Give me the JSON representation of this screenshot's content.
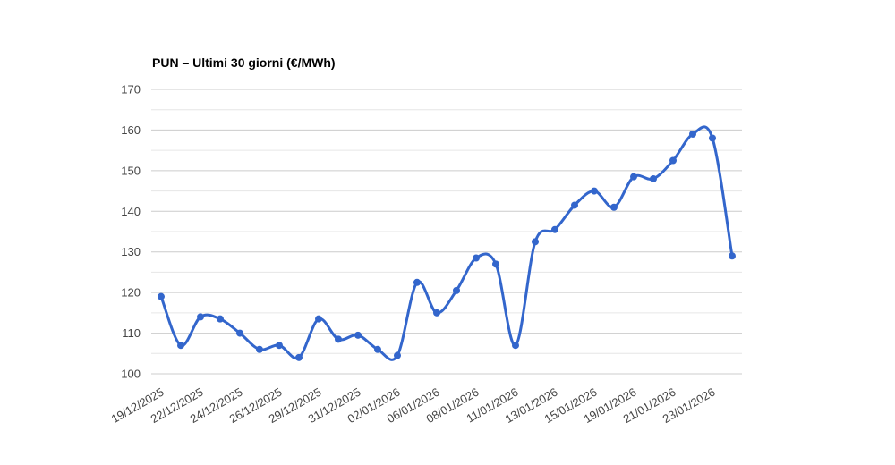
{
  "page": {
    "background_color": "#ffffff"
  },
  "chart_data": {
    "type": "line",
    "title": "PUN – Ultimi 30 giorni (€/MWh)",
    "xlabel": "",
    "ylabel": "",
    "legend": "none",
    "curve": "smooth",
    "ylim": [
      100,
      170
    ],
    "y_tick_step": 10,
    "y_minor_gridline_step": 5,
    "y_tick_labels": [
      "100",
      "110",
      "120",
      "130",
      "140",
      "150",
      "160",
      "170"
    ],
    "x_tick_labels": [
      "19/12/2025",
      "22/12/2025",
      "24/12/2025",
      "26/12/2025",
      "29/12/2025",
      "31/12/2025",
      "02/01/2026",
      "06/01/2026",
      "08/01/2026",
      "11/01/2026",
      "13/01/2026",
      "15/01/2026",
      "19/01/2026",
      "21/01/2026",
      "23/01/2026"
    ],
    "x_tick_every_n_points": 2,
    "values": [
      119,
      107,
      114,
      113.5,
      110,
      106,
      107,
      104,
      113.5,
      108.5,
      109.5,
      106,
      104.5,
      122.5,
      115,
      120.5,
      128.5,
      127,
      107,
      132.5,
      135.5,
      141.5,
      145,
      141,
      148.5,
      148,
      152.5,
      159,
      158,
      129
    ],
    "colors": {
      "series": "#3366cc",
      "major_gridline": "#cccccc",
      "minor_gridline": "#e6e6e6",
      "axis_text": "#444444",
      "title_text": "#000000",
      "background": "#ffffff"
    }
  }
}
